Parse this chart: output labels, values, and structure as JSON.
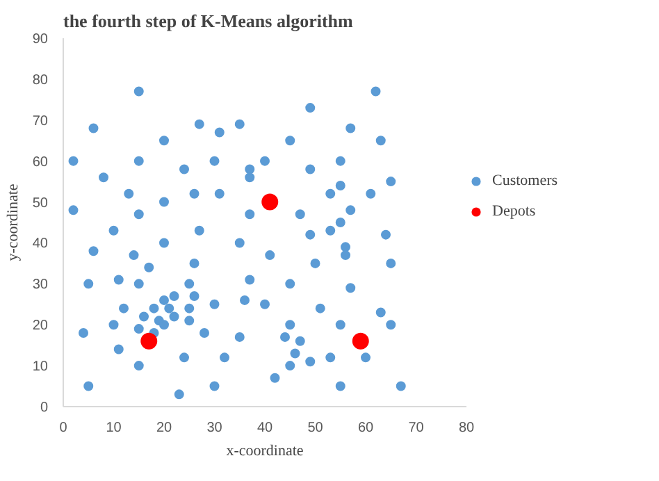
{
  "chart_data": {
    "type": "scatter",
    "title": "the fourth step of K-Means algorithm",
    "xlabel": "x-coordinate",
    "ylabel": "y-coordinate",
    "xlim": [
      0,
      80
    ],
    "ylim": [
      0,
      90
    ],
    "xticks": [
      0,
      10,
      20,
      30,
      40,
      50,
      60,
      70,
      80
    ],
    "yticks": [
      0,
      10,
      20,
      30,
      40,
      50,
      60,
      70,
      80,
      90
    ],
    "grid": false,
    "legend": "right",
    "marker": "circle",
    "series": [
      {
        "name": "Customers",
        "color": "#5b9bd5",
        "x": [
          2,
          6,
          15,
          20,
          27,
          15,
          8,
          24,
          30,
          13,
          26,
          2,
          20,
          15,
          10,
          27,
          6,
          14,
          20,
          17,
          26,
          5,
          11,
          15,
          25,
          12,
          18,
          20,
          21,
          22,
          26,
          25,
          16,
          22,
          30,
          10,
          19,
          20,
          15,
          18,
          25,
          4,
          28,
          11,
          24,
          15,
          5,
          23,
          30,
          49,
          57,
          35,
          31,
          45,
          37,
          40,
          37,
          49,
          55,
          31,
          53,
          55,
          37,
          47,
          57,
          49,
          53,
          55,
          35,
          41,
          50,
          56,
          56,
          37,
          45,
          57,
          36,
          40,
          51,
          45,
          55,
          35,
          44,
          47,
          46,
          45,
          49,
          53,
          32,
          42,
          55,
          62,
          63,
          65,
          61,
          64,
          65,
          63,
          65,
          60,
          67
        ],
        "values": [
          60,
          68,
          77,
          65,
          69,
          60,
          56,
          58,
          60,
          52,
          52,
          48,
          50,
          47,
          43,
          43,
          38,
          37,
          40,
          34,
          35,
          30,
          31,
          30,
          30,
          24,
          24,
          26,
          24,
          27,
          27,
          24,
          22,
          22,
          25,
          20,
          21,
          20,
          19,
          18,
          21,
          18,
          18,
          14,
          12,
          10,
          5,
          3,
          5,
          73,
          68,
          69,
          67,
          65,
          58,
          60,
          56,
          58,
          60,
          52,
          52,
          54,
          47,
          47,
          48,
          42,
          43,
          45,
          40,
          37,
          35,
          39,
          37,
          31,
          30,
          29,
          26,
          25,
          24,
          20,
          20,
          17,
          17,
          16,
          13,
          10,
          11,
          12,
          12,
          7,
          5,
          77,
          65,
          55,
          52,
          42,
          35,
          23,
          20,
          12,
          5
        ]
      },
      {
        "name": "Depots",
        "color": "#ff0000",
        "x": [
          17,
          41,
          59
        ],
        "values": [
          16,
          50,
          16
        ]
      }
    ]
  }
}
